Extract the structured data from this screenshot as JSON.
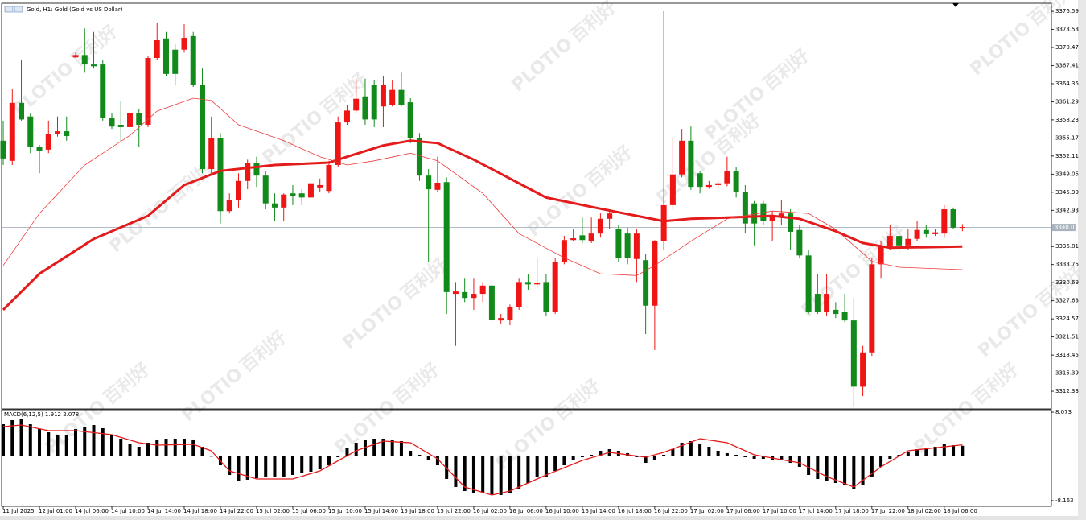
{
  "chart_data": [
    {
      "type": "candlestick",
      "title": "Gold, H1: Gold (Gold vs US Dollar)",
      "watermark": [
        "PLOTIO",
        "百利好"
      ],
      "up_color": "#f01515",
      "down_color": "#118a1b",
      "xlim": [
        -0.18,
        115.84
      ],
      "ylim": [
        3309.34,
        3377.96
      ],
      "yticks": [
        3376.59,
        3373.53,
        3370.47,
        3367.41,
        3364.35,
        3361.29,
        3358.23,
        3355.17,
        3352.11,
        3349.05,
        3345.99,
        3342.93,
        3336.81,
        3333.75,
        3330.69,
        3327.63,
        3324.57,
        3321.51,
        3318.45,
        3315.39,
        3312.33
      ],
      "current_price": 3340.03,
      "open": [
        3354.7,
        3351.3,
        3361.1,
        3358.8,
        3353.7,
        3353.2,
        3355.9,
        3356.3,
        3368.8,
        3369.2,
        3367.6,
        3367.6,
        3358.5,
        3357.4,
        3357.0,
        3359.4,
        3357.4,
        3368.7,
        3372.0,
        3370.1,
        3370.1,
        3372.4,
        3364.2,
        3349.9,
        3355.1,
        3342.8,
        3344.7,
        3347.9,
        3350.9,
        3348.8,
        3344.1,
        3343.4,
        3345.8,
        3345.8,
        3345.1,
        3346.8,
        3346.2,
        3350.6,
        3357.8,
        3359.8,
        3362.2,
        3364.2,
        3360.5,
        3360.8,
        3363.3,
        3361.2,
        3355.1,
        3348.8,
        3346.4,
        3347.7,
        3328.8,
        3329.1,
        3328.1,
        3328.8,
        3330.2,
        3324.3,
        3324.4,
        3326.5,
        3330.8,
        3330.4,
        3330.8,
        3325.8,
        3334.2,
        3337.9,
        3338.7,
        3337.7,
        3339.0,
        3341.5,
        3339.7,
        3339.0,
        3334.7,
        3334.5,
        3326.8,
        3337.7,
        3343.8,
        3349.0,
        3354.7,
        3349.2,
        3346.9,
        3347.2,
        3347.5,
        3349.5,
        3346.1,
        3344.1,
        3344.1,
        3341.1,
        3341.7,
        3342.4,
        3339.6,
        3335.3,
        3328.8,
        3325.7,
        3326.1,
        3325.7,
        3324.3,
        3313.1,
        3318.9,
        3333.8,
        3336.8,
        3338.6,
        3337.0,
        3338.1,
        3339.6,
        3338.9,
        3339.0,
        3343.1,
        3340.0
      ],
      "high": [
        3358.1,
        3363.5,
        3368.3,
        3359.4,
        3354.0,
        3358.1,
        3358.8,
        3358.8,
        3369.6,
        3373.7,
        3373.1,
        3368.3,
        3359.4,
        3361.5,
        3361.5,
        3360.1,
        3369.0,
        3374.7,
        3373.1,
        3371.0,
        3374.4,
        3373.1,
        3366.9,
        3358.8,
        3356.0,
        3345.8,
        3349.2,
        3351.5,
        3352.0,
        3349.6,
        3345.8,
        3345.8,
        3347.2,
        3346.5,
        3347.9,
        3348.3,
        3351.3,
        3358.8,
        3360.8,
        3365.2,
        3365.2,
        3364.9,
        3365.6,
        3364.9,
        3366.2,
        3361.9,
        3356.0,
        3349.9,
        3352.0,
        3348.5,
        3330.8,
        3331.5,
        3331.5,
        3330.8,
        3330.8,
        3325.4,
        3327.0,
        3331.5,
        3332.2,
        3334.9,
        3332.2,
        3334.9,
        3338.6,
        3339.7,
        3341.7,
        3341.7,
        3342.4,
        3342.8,
        3340.4,
        3340.0,
        3339.7,
        3335.6,
        3337.9,
        3376.6,
        3355.1,
        3356.7,
        3357.1,
        3349.6,
        3347.9,
        3347.9,
        3352.0,
        3350.2,
        3347.2,
        3344.5,
        3344.5,
        3342.8,
        3344.7,
        3343.1,
        3340.4,
        3336.3,
        3332.2,
        3332.2,
        3327.4,
        3328.8,
        3328.1,
        3320.0,
        3334.9,
        3337.7,
        3340.4,
        3339.7,
        3339.7,
        3341.1,
        3340.4,
        3339.7,
        3343.8,
        3343.4,
        3340.6
      ],
      "low": [
        3350.6,
        3350.6,
        3358.1,
        3352.6,
        3349.2,
        3352.6,
        3355.4,
        3354.7,
        3368.7,
        3366.2,
        3366.9,
        3358.1,
        3356.7,
        3354.7,
        3354.7,
        3353.7,
        3357.0,
        3368.3,
        3365.6,
        3364.2,
        3369.6,
        3363.8,
        3349.2,
        3349.2,
        3340.7,
        3342.4,
        3343.4,
        3346.5,
        3346.9,
        3343.1,
        3341.1,
        3341.1,
        3343.8,
        3343.8,
        3344.5,
        3346.1,
        3345.8,
        3350.2,
        3357.4,
        3359.4,
        3357.4,
        3357.0,
        3357.0,
        3360.5,
        3360.5,
        3354.3,
        3347.9,
        3334.2,
        3346.1,
        3325.4,
        3320.0,
        3327.4,
        3326.1,
        3327.4,
        3324.0,
        3323.8,
        3323.5,
        3326.1,
        3329.5,
        3329.8,
        3325.1,
        3325.4,
        3333.8,
        3337.7,
        3337.4,
        3337.4,
        3338.3,
        3339.7,
        3334.2,
        3333.8,
        3330.8,
        3322.0,
        3319.3,
        3336.3,
        3343.1,
        3348.5,
        3346.4,
        3345.8,
        3346.6,
        3346.9,
        3347.0,
        3345.1,
        3339.0,
        3337.0,
        3340.4,
        3337.7,
        3340.4,
        3336.3,
        3334.9,
        3325.4,
        3325.4,
        3325.1,
        3324.7,
        3324.0,
        3309.7,
        3311.5,
        3318.3,
        3331.5,
        3336.3,
        3335.6,
        3336.3,
        3337.7,
        3338.3,
        3338.6,
        3338.3,
        3339.7,
        3339.4
      ],
      "close": [
        3351.7,
        3361.1,
        3358.3,
        3353.6,
        3353.0,
        3355.8,
        3356.3,
        3355.5,
        3369.2,
        3367.6,
        3367.3,
        3358.5,
        3357.1,
        3357.0,
        3359.4,
        3357.4,
        3368.7,
        3371.7,
        3366.0,
        3366.0,
        3372.1,
        3364.2,
        3349.9,
        3355.1,
        3342.8,
        3344.7,
        3347.9,
        3350.9,
        3348.8,
        3344.1,
        3343.4,
        3345.6,
        3345.3,
        3345.1,
        3347.5,
        3347.2,
        3350.6,
        3357.8,
        3359.8,
        3361.8,
        3358.3,
        3358.3,
        3364.2,
        3363.3,
        3360.8,
        3355.1,
        3348.8,
        3346.5,
        3347.6,
        3329.1,
        3329.2,
        3328.1,
        3328.8,
        3330.2,
        3324.4,
        3324.7,
        3326.5,
        3330.8,
        3330.4,
        3330.7,
        3325.8,
        3334.2,
        3337.9,
        3338.2,
        3337.9,
        3339.0,
        3341.5,
        3342.4,
        3334.9,
        3334.9,
        3339.0,
        3326.8,
        3337.7,
        3343.8,
        3349.0,
        3354.7,
        3346.9,
        3346.9,
        3347.2,
        3347.5,
        3349.5,
        3346.1,
        3340.7,
        3340.7,
        3341.1,
        3342.0,
        3342.4,
        3339.3,
        3335.3,
        3325.8,
        3325.8,
        3328.8,
        3325.4,
        3324.3,
        3313.1,
        3318.9,
        3333.8,
        3336.8,
        3338.6,
        3337.0,
        3338.1,
        3339.6,
        3338.9,
        3339.2,
        3343.1,
        3340.0,
        3340.1
      ],
      "lines": [
        {
          "color": "#e31b1b",
          "width": 3,
          "x": [
            0,
            4,
            10,
            16,
            20,
            24,
            30,
            36,
            38,
            42,
            45,
            48,
            52,
            56,
            60,
            66,
            70,
            73,
            76,
            80,
            85,
            88,
            92,
            95,
            98,
            106
          ],
          "values": [
            3326.1,
            3332.2,
            3338.1,
            3342.0,
            3347.2,
            3349.6,
            3350.6,
            3351.0,
            3352.0,
            3353.9,
            3354.7,
            3354.3,
            3351.5,
            3348.3,
            3345.1,
            3343.2,
            3342.0,
            3341.1,
            3341.5,
            3341.7,
            3342.0,
            3341.5,
            3339.4,
            3337.4,
            3336.6,
            3336.8
          ]
        },
        {
          "color": "#ee3a3a",
          "width": 0.8,
          "x": [
            0,
            4,
            9,
            14,
            17,
            21,
            23,
            26,
            31,
            35,
            38,
            41,
            45,
            48,
            53,
            57,
            62,
            66,
            70,
            72,
            76,
            80,
            85,
            89,
            92,
            96,
            99,
            106
          ],
          "values": [
            3333.6,
            3342.4,
            3350.6,
            3355.6,
            3359.7,
            3361.9,
            3361.5,
            3357.4,
            3354.7,
            3352.0,
            3350.6,
            3351.3,
            3352.6,
            3351.3,
            3345.8,
            3339.0,
            3334.9,
            3332.2,
            3331.9,
            3333.6,
            3337.7,
            3341.5,
            3342.8,
            3342.4,
            3339.7,
            3334.3,
            3333.3,
            3332.9
          ]
        }
      ]
    },
    {
      "type": "macd",
      "title": "MACD(6,12,5) 1.912 2.078",
      "xlim": [
        -0.18,
        115.84
      ],
      "ylim": [
        -9.2,
        8.52
      ],
      "yticks": [
        8.073,
        -8.163
      ],
      "xticks": [
        {
          "value": 0,
          "label": "11 Jul 2025"
        },
        {
          "value": 4,
          "label": "12 Jul 01:00"
        },
        {
          "value": 8,
          "label": "14 Jul 06:00"
        },
        {
          "value": 12,
          "label": "14 Jul 10:00"
        },
        {
          "value": 16,
          "label": "14 Jul 14:00"
        },
        {
          "value": 20,
          "label": "14 Jul 18:00"
        },
        {
          "value": 24,
          "label": "14 Jul 22:00"
        },
        {
          "value": 28,
          "label": "15 Jul 02:00"
        },
        {
          "value": 32,
          "label": "15 Jul 06:00"
        },
        {
          "value": 36,
          "label": "15 Jul 10:00"
        },
        {
          "value": 40,
          "label": "15 Jul 14:00"
        },
        {
          "value": 44,
          "label": "15 Jul 18:00"
        },
        {
          "value": 48,
          "label": "15 Jul 22:00"
        },
        {
          "value": 52,
          "label": "16 Jul 02:00"
        },
        {
          "value": 56,
          "label": "16 Jul 06:00"
        },
        {
          "value": 60,
          "label": "16 Jul 10:00"
        },
        {
          "value": 64,
          "label": "16 Jul 14:00"
        },
        {
          "value": 68,
          "label": "16 Jul 18:00"
        },
        {
          "value": 72,
          "label": "16 Jul 22:00"
        },
        {
          "value": 76,
          "label": "17 Jul 02:00"
        },
        {
          "value": 80,
          "label": "17 Jul 06:00"
        },
        {
          "value": 84,
          "label": "17 Jul 10:00"
        },
        {
          "value": 88,
          "label": "17 Jul 14:00"
        },
        {
          "value": 92,
          "label": "17 Jul 18:00"
        },
        {
          "value": 96,
          "label": "17 Jul 22:00"
        },
        {
          "value": 100,
          "label": "18 Jul 02:00"
        },
        {
          "value": 104,
          "label": "18 Jul 06:00"
        }
      ],
      "histogram": {
        "color": "#000000",
        "values": [
          5.86,
          6.6,
          6.89,
          5.86,
          4.97,
          4.38,
          3.94,
          3.94,
          4.97,
          5.42,
          5.71,
          5.12,
          3.94,
          3.2,
          2.17,
          1.73,
          2.46,
          3.06,
          3.2,
          3.2,
          3.2,
          3.06,
          1.73,
          -0.05,
          -1.67,
          -3.44,
          -4.47,
          -4.32,
          -4.03,
          -3.88,
          -3.73,
          -3.73,
          -3.44,
          -3.14,
          -2.85,
          -2.41,
          -1.67,
          -0.19,
          1.58,
          2.46,
          2.91,
          3.2,
          3.2,
          3.06,
          2.76,
          0.99,
          0.25,
          -0.78,
          -1.67,
          -4.18,
          -5.65,
          -6.39,
          -6.69,
          -6.69,
          -7.13,
          -7.13,
          -6.69,
          -5.95,
          -4.92,
          -3.88,
          -3.73,
          -2.7,
          -1.67,
          -0.78,
          -0.19,
          0.25,
          0.99,
          1.28,
          0.99,
          0.55,
          -0.19,
          -1.23,
          -0.78,
          0.25,
          1.28,
          2.46,
          2.76,
          2.17,
          1.73,
          0.99,
          0.55,
          0.25,
          -0.19,
          -0.49,
          -0.49,
          -0.78,
          -0.78,
          -1.23,
          -1.96,
          -3.44,
          -4.18,
          -4.62,
          -4.92,
          -5.21,
          -5.95,
          -5.21,
          -3.73,
          -1.96,
          -0.49,
          0.25,
          0.69,
          1.28,
          1.58,
          1.73,
          2.17,
          2.02,
          1.912
        ]
      },
      "signal": {
        "color": "#e31b1b",
        "x": [
          0,
          2,
          5,
          8,
          12,
          15,
          17,
          21,
          23,
          25,
          28,
          32,
          35,
          39,
          42,
          45,
          48,
          51,
          54,
          56,
          60,
          64,
          67,
          71,
          73,
          77,
          80,
          83,
          88,
          91,
          94,
          97,
          100,
          106
        ],
        "values": [
          5.42,
          5.71,
          4.68,
          4.68,
          3.94,
          2.46,
          2.02,
          2.17,
          0.99,
          -2.7,
          -4.18,
          -4.18,
          -2.7,
          0.99,
          2.76,
          2.46,
          -0.49,
          -5.65,
          -7.13,
          -6.39,
          -3.44,
          -0.78,
          0.69,
          -0.19,
          0.69,
          3.2,
          2.46,
          0.25,
          -1.23,
          -3.73,
          -5.65,
          -1.96,
          0.99,
          2.078
        ]
      }
    }
  ]
}
